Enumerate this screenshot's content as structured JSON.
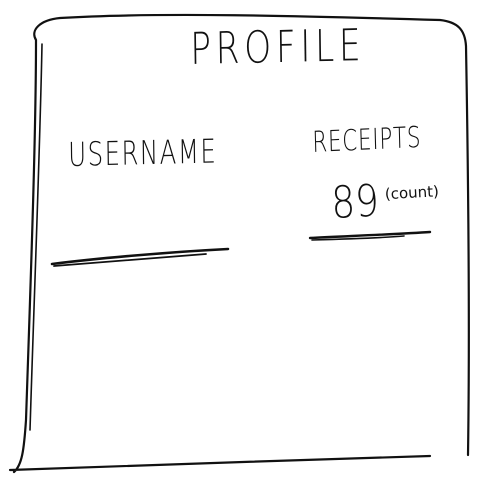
{
  "profile": {
    "title": "PROFILE",
    "username": {
      "label": "USERNAME",
      "value": ""
    },
    "receipts": {
      "label": "RECEIPTS",
      "count": "89",
      "unit": "(count)"
    }
  }
}
